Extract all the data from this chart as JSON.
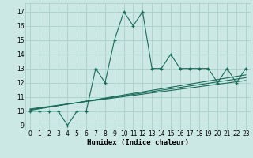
{
  "title": "",
  "xlabel": "Humidex (Indice chaleur)",
  "ylabel": "",
  "bg_color": "#cce8e4",
  "grid_color": "#aaceca",
  "line_color": "#1a6b5a",
  "xlim": [
    -0.5,
    23.5
  ],
  "ylim": [
    8.7,
    17.6
  ],
  "xticks": [
    0,
    1,
    2,
    3,
    4,
    5,
    6,
    7,
    8,
    9,
    10,
    11,
    12,
    13,
    14,
    15,
    16,
    17,
    18,
    19,
    20,
    21,
    22,
    23
  ],
  "yticks": [
    9,
    10,
    11,
    12,
    13,
    14,
    15,
    16,
    17
  ],
  "main_x": [
    0,
    1,
    2,
    3,
    4,
    5,
    6,
    7,
    8,
    9,
    10,
    11,
    12,
    13,
    14,
    15,
    16,
    17,
    18,
    19,
    20,
    21,
    22,
    23
  ],
  "main_y": [
    10,
    10,
    10,
    10,
    9,
    10,
    10,
    13,
    12,
    15,
    17,
    16,
    17,
    13,
    13,
    14,
    13,
    13,
    13,
    13,
    12,
    13,
    12,
    13
  ],
  "line1_x": [
    0,
    23
  ],
  "line1_y": [
    10.05,
    12.55
  ],
  "line2_x": [
    0,
    23
  ],
  "line2_y": [
    10.1,
    12.35
  ],
  "line3_x": [
    0,
    23
  ],
  "line3_y": [
    10.15,
    12.15
  ],
  "font_size_label": 6.5,
  "font_size_tick": 5.5,
  "marker": "+",
  "marker_size": 3,
  "line_width": 0.8
}
